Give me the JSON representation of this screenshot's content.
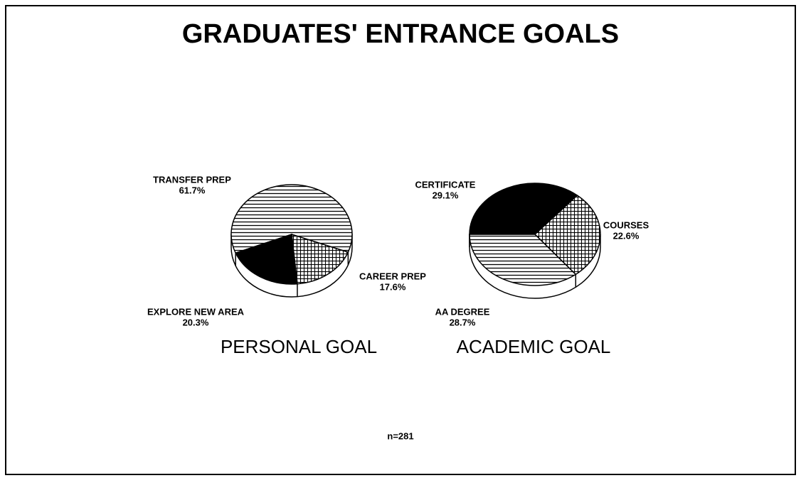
{
  "title": "GRADUATES' ENTRANCE GOALS",
  "note": "n=281",
  "chart_data": [
    {
      "type": "pie",
      "title": "PERSONAL GOAL",
      "categories": [
        "TRANSFER PREP",
        "CAREER PREP",
        "EXPLORE NEW AREA"
      ],
      "values": [
        61.7,
        17.6,
        20.3
      ],
      "value_labels": [
        "61.7%",
        "17.6%",
        "20.3%"
      ],
      "patterns": [
        "horizontal",
        "dots",
        "solid"
      ]
    },
    {
      "type": "pie",
      "title": "ACADEMIC GOAL",
      "categories": [
        "CERTIFICATE",
        "COURSES",
        "AA DEGREE"
      ],
      "values": [
        29.1,
        22.6,
        28.7
      ],
      "value_labels": [
        "29.1%",
        "22.6%",
        "28.7%"
      ],
      "patterns": [
        "solid",
        "dots",
        "horizontal"
      ]
    }
  ]
}
